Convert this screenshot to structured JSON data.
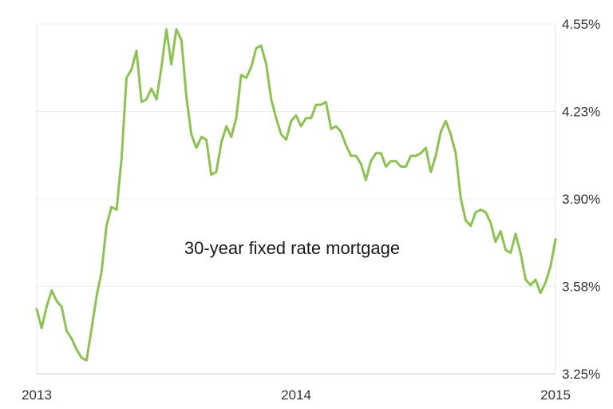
{
  "chart_data": {
    "type": "line",
    "title": "",
    "xlabel": "",
    "ylabel": "",
    "annotation": "30-year fixed rate mortgage",
    "x_ticks": [
      "2013",
      "2014",
      "2015"
    ],
    "x_tick_values": [
      2013,
      2014,
      2015
    ],
    "xlim": [
      2013,
      2015
    ],
    "y_ticks": [
      "3.25%",
      "3.58%",
      "3.90%",
      "4.23%",
      "4.55%"
    ],
    "y_tick_values": [
      3.25,
      3.575,
      3.9,
      4.225,
      4.55
    ],
    "ylim": [
      3.25,
      4.55
    ],
    "grid": "horizontal",
    "y_axis_side": "right",
    "line_color": "#8dc153",
    "series": [
      {
        "x": [
          2013.0,
          2013.019,
          2013.038,
          2013.058,
          2013.077,
          2013.096,
          2013.115,
          2013.135,
          2013.154,
          2013.173,
          2013.192,
          2013.212,
          2013.231,
          2013.25,
          2013.269,
          2013.288,
          2013.308,
          2013.327,
          2013.346,
          2013.365,
          2013.385,
          2013.404,
          2013.423,
          2013.442,
          2013.462,
          2013.481,
          2013.5,
          2013.519,
          2013.538,
          2013.558,
          2013.577,
          2013.596,
          2013.615,
          2013.635,
          2013.654,
          2013.673,
          2013.692,
          2013.712,
          2013.731,
          2013.75,
          2013.769,
          2013.788,
          2013.808,
          2013.827,
          2013.846,
          2013.865,
          2013.885,
          2013.904,
          2013.923,
          2013.942,
          2013.962,
          2013.981,
          2014.0,
          2014.019,
          2014.038,
          2014.058,
          2014.077,
          2014.096,
          2014.115,
          2014.135,
          2014.154,
          2014.173,
          2014.192,
          2014.212,
          2014.231,
          2014.25,
          2014.269,
          2014.288,
          2014.308,
          2014.327,
          2014.346,
          2014.365,
          2014.385,
          2014.404,
          2014.423,
          2014.442,
          2014.462,
          2014.481,
          2014.5,
          2014.519,
          2014.538,
          2014.558,
          2014.577,
          2014.596,
          2014.615,
          2014.635,
          2014.654,
          2014.673,
          2014.692,
          2014.712,
          2014.731,
          2014.75,
          2014.769,
          2014.788,
          2014.808,
          2014.827,
          2014.846,
          2014.865,
          2014.885,
          2014.904,
          2014.923,
          2014.942,
          2014.962,
          2014.981,
          2015.0
        ],
        "y": [
          3.49,
          3.42,
          3.5,
          3.56,
          3.52,
          3.5,
          3.41,
          3.38,
          3.34,
          3.31,
          3.3,
          3.42,
          3.54,
          3.63,
          3.8,
          3.87,
          3.86,
          4.05,
          4.35,
          4.38,
          4.45,
          4.26,
          4.27,
          4.31,
          4.27,
          4.39,
          4.53,
          4.4,
          4.53,
          4.49,
          4.28,
          4.14,
          4.09,
          4.13,
          4.12,
          3.99,
          4.0,
          4.11,
          4.17,
          4.13,
          4.2,
          4.36,
          4.35,
          4.39,
          4.46,
          4.47,
          4.4,
          4.27,
          4.2,
          4.14,
          4.12,
          4.19,
          4.21,
          4.17,
          4.2,
          4.2,
          4.25,
          4.25,
          4.26,
          4.16,
          4.17,
          4.15,
          4.1,
          4.06,
          4.06,
          4.03,
          3.97,
          4.04,
          4.07,
          4.07,
          4.02,
          4.04,
          4.04,
          4.02,
          4.02,
          4.06,
          4.06,
          4.07,
          4.09,
          4.0,
          4.06,
          4.15,
          4.19,
          4.14,
          4.07,
          3.9,
          3.82,
          3.8,
          3.85,
          3.86,
          3.85,
          3.81,
          3.74,
          3.78,
          3.71,
          3.7,
          3.77,
          3.7,
          3.6,
          3.58,
          3.6,
          3.55,
          3.59,
          3.65,
          3.75
        ]
      }
    ]
  }
}
